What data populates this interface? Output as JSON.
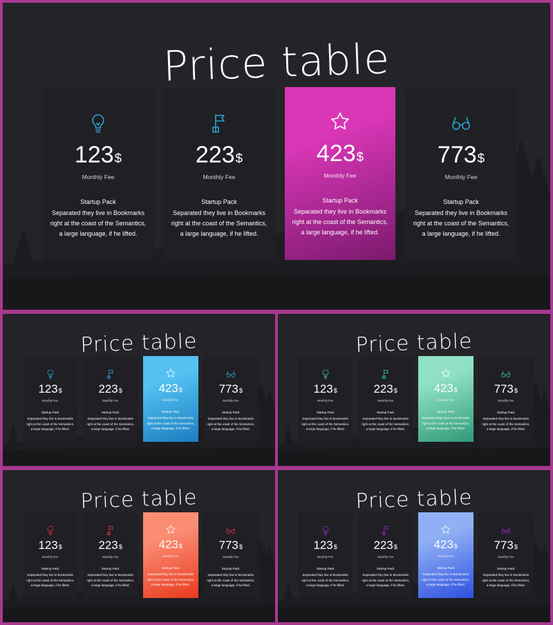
{
  "slides": [
    {
      "name": "slide-magenta",
      "title": "Price table",
      "accent_icon": "#2aa3cf",
      "featured_from": "#d936b6",
      "featured_to": "#7a1a6e"
    },
    {
      "name": "slide-blue",
      "title": "Price table",
      "accent_icon": "#2aa3cf",
      "featured_from": "#54c1f2",
      "featured_to": "#1a7ec0"
    },
    {
      "name": "slide-green",
      "title": "Price table",
      "accent_icon": "#3fbf9a",
      "featured_from": "#8fe0c4",
      "featured_to": "#2f9a78"
    },
    {
      "name": "slide-orange",
      "title": "Price table",
      "accent_icon": "#e0324a",
      "featured_from": "#fb8d73",
      "featured_to": "#e83a1e"
    },
    {
      "name": "slide-purple",
      "title": "Price table",
      "accent_icon": "#9b2cc8",
      "featured_from": "#8fb0f5",
      "featured_to": "#2f4fe0"
    }
  ],
  "cards": [
    {
      "icon": "lightbulb-icon",
      "price": "123",
      "currency": "$",
      "fee_label": "Monthly Fee",
      "pack": "Startup Pack",
      "desc": "Separated they live in Bookmarks right at the coast of the Semantics, a large language, if he lifted."
    },
    {
      "icon": "flag-icon",
      "price": "223",
      "currency": "$",
      "fee_label": "Monthly Fee",
      "pack": "Startup Pack",
      "desc": "Separated they live in Bookmarks right at the coast of the Semantics, a large language, if he lifted."
    },
    {
      "icon": "star-icon",
      "price": "423",
      "currency": "$",
      "fee_label": "Monthly Fee",
      "pack": "Startup Pack",
      "desc": "Separated they live in Bookmarks right at the coast of the Semantics, a large language, if he lifted."
    },
    {
      "icon": "glasses-icon",
      "price": "773",
      "currency": "$",
      "fee_label": "Monthly Fee",
      "pack": "Startup Pack",
      "desc": "Separated they live in Bookmarks right at the coast of the Semantics, a large language, if he lifted."
    }
  ],
  "small_cards_desc": [
    "Separated they live in Bookmarks right at the coast of the Semantics, a large language, if he lifted.",
    "Separated they live in Bookmarks right at the coast of the Semantics, a large language, if he lifted.",
    "Separated they live in Bookmarks right at the coast of the Semantics, a large language, if he lifted.",
    "Separated they live in Bookmarks right at the coast of the Semantics, a large language, if he lifted."
  ],
  "green_featured_desc": "Separated they have in Bookmarks right at the coast of the Semantics, a large language, if he lifted."
}
